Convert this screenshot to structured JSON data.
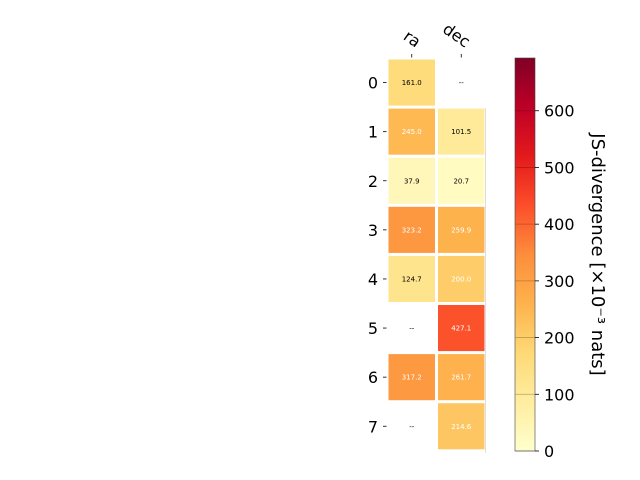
{
  "chart_data": {
    "type": "heatmap",
    "columns": [
      "ra",
      "dec"
    ],
    "rows": [
      "0",
      "1",
      "2",
      "3",
      "4",
      "5",
      "6",
      "7"
    ],
    "values": [
      [
        161.0,
        null
      ],
      [
        245.0,
        101.5
      ],
      [
        37.9,
        20.7
      ],
      [
        323.2,
        259.9
      ],
      [
        124.7,
        200.0
      ],
      [
        null,
        427.1
      ],
      [
        317.2,
        261.7
      ],
      [
        null,
        214.6
      ]
    ],
    "cell_labels": [
      [
        "161.0",
        "--"
      ],
      [
        "245.0",
        "101.5"
      ],
      [
        "37.9",
        "20.7"
      ],
      [
        "323.2",
        "259.9"
      ],
      [
        "124.7",
        "200.0"
      ],
      [
        "--",
        "427.1"
      ],
      [
        "317.2",
        "261.7"
      ],
      [
        "--",
        "214.6"
      ]
    ],
    "colorbar": {
      "label": "JS-divergence [×10⁻³ nats]",
      "range": [
        0,
        693
      ],
      "ticks": [
        "0",
        "100",
        "200",
        "300",
        "400",
        "500",
        "600"
      ],
      "tick_values": [
        0,
        100,
        200,
        300,
        400,
        500,
        600
      ],
      "colormap": "YlOrRd"
    },
    "missing_label": "--"
  }
}
